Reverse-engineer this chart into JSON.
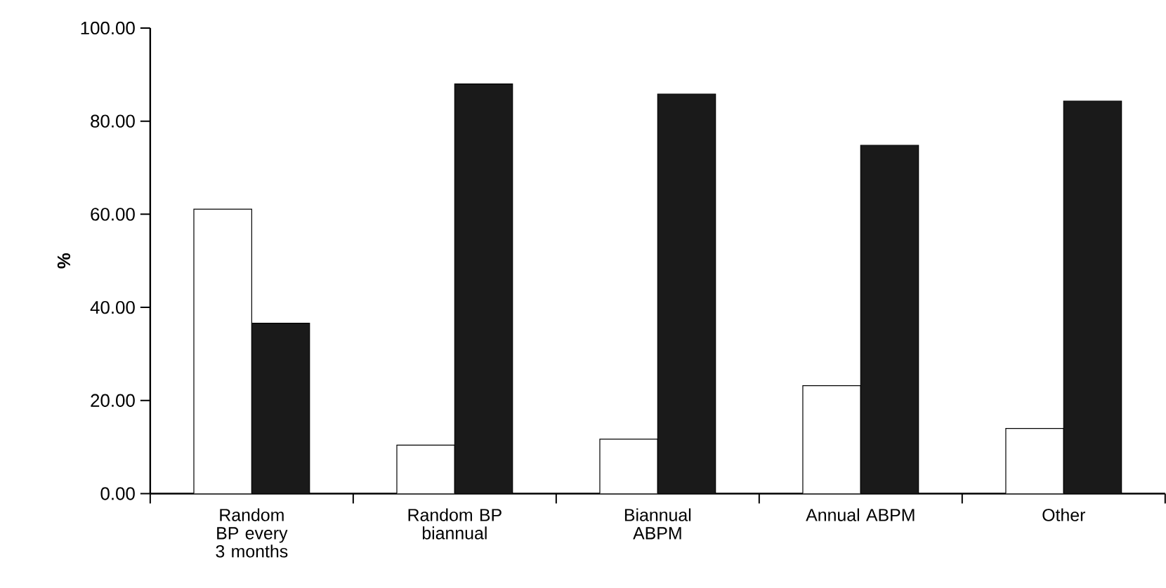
{
  "chart_data": {
    "type": "bar",
    "ylabel": "%",
    "categories": [
      "Random BP every 3 months",
      "Random BP biannual",
      "Biannual ABPM",
      "Annual ABPM",
      "Other"
    ],
    "series": [
      {
        "color": "#ffffff",
        "values": [
          61.1,
          10.4,
          11.7,
          23.2,
          14.0
        ]
      },
      {
        "color": "#1a1a1a",
        "values": [
          36.6,
          88.0,
          85.8,
          74.8,
          84.3
        ]
      }
    ],
    "ylim": [
      0,
      100
    ],
    "yticks": [
      {
        "value": 0,
        "label": "0.00"
      },
      {
        "value": 20,
        "label": "20.00"
      },
      {
        "value": 40,
        "label": "40.00"
      },
      {
        "value": 60,
        "label": "60.00"
      },
      {
        "value": 80,
        "label": "80.00"
      },
      {
        "value": 100,
        "label": "100.00"
      }
    ],
    "grid": false
  }
}
